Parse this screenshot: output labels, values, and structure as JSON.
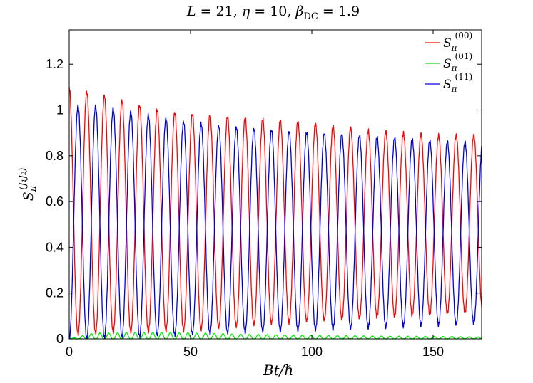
{
  "chart_data": {
    "type": "line",
    "title": {
      "L": "L",
      "L_val": " = 21, ",
      "eta": "η",
      "eta_val": " = 10, ",
      "beta": "β",
      "beta_sub": "DC",
      "beta_val": " = 1.9"
    },
    "xlabel": "Bt/ℏ",
    "ylabel": {
      "base": "S",
      "sub": "π",
      "sup": "(J₁J₂)"
    },
    "xlim": [
      0,
      170
    ],
    "ylim": [
      0,
      1.35
    ],
    "xticks": [
      0,
      50,
      100,
      150
    ],
    "yticks": [
      0,
      0.2,
      0.4,
      0.6,
      0.8,
      1,
      1.2
    ],
    "ytick_labels": [
      "0",
      "0.2",
      "0.4",
      "0.6",
      "0.8",
      "1",
      "1.2"
    ],
    "legend_position": "top-right",
    "period": 7.25,
    "series": [
      {
        "name": "S_π^(00)",
        "legend": {
          "base": "S",
          "sub": "π",
          "sup": "(00)"
        },
        "color": "#ff0000",
        "peaks": [
          [
            0,
            1.1
          ],
          [
            15,
            1.06
          ],
          [
            29,
            1.02
          ],
          [
            40,
            0.99
          ],
          [
            54,
            0.98
          ],
          [
            65,
            0.97
          ],
          [
            80,
            0.96
          ],
          [
            94,
            0.95
          ],
          [
            109,
            0.93
          ],
          [
            123,
            0.91
          ],
          [
            138,
            0.9
          ],
          [
            152,
            0.89
          ],
          [
            166,
            0.89
          ]
        ],
        "troughs": [
          [
            0,
            0.02
          ],
          [
            50,
            0.04
          ],
          [
            100,
            0.08
          ],
          [
            150,
            0.11
          ],
          [
            170,
            0.12
          ]
        ],
        "start": 1.1,
        "end": 0.12
      },
      {
        "name": "S_π^(01)",
        "legend": {
          "base": "S",
          "sub": "π",
          "sup": "(01)"
        },
        "color": "#00ee00",
        "peaks": [
          [
            0,
            0.0
          ],
          [
            10,
            0.025
          ],
          [
            25,
            0.028
          ],
          [
            40,
            0.028
          ],
          [
            55,
            0.025
          ],
          [
            70,
            0.02
          ],
          [
            100,
            0.015
          ],
          [
            130,
            0.012
          ],
          [
            160,
            0.01
          ],
          [
            170,
            0.008
          ]
        ],
        "troughs": [
          [
            0,
            0.0
          ],
          [
            170,
            0.0
          ]
        ],
        "start": 0.0,
        "end": 0.005
      },
      {
        "name": "S_π^(11)",
        "legend": {
          "base": "S",
          "sub": "π",
          "sup": "(11)"
        },
        "color": "#0000dd",
        "peaks": [
          [
            7,
            1.02
          ],
          [
            22,
            1.0
          ],
          [
            36,
            0.97
          ],
          [
            47,
            0.95
          ],
          [
            62,
            0.93
          ],
          [
            73,
            0.92
          ],
          [
            87,
            0.91
          ],
          [
            101,
            0.9
          ],
          [
            116,
            0.89
          ],
          [
            130,
            0.88
          ],
          [
            145,
            0.87
          ],
          [
            159,
            0.86
          ],
          [
            170,
            0.86
          ]
        ],
        "troughs": [
          [
            0,
            0.0
          ],
          [
            50,
            0.02
          ],
          [
            100,
            0.04
          ],
          [
            150,
            0.06
          ],
          [
            170,
            0.07
          ]
        ],
        "start": 0.0,
        "end": 0.86
      }
    ]
  }
}
